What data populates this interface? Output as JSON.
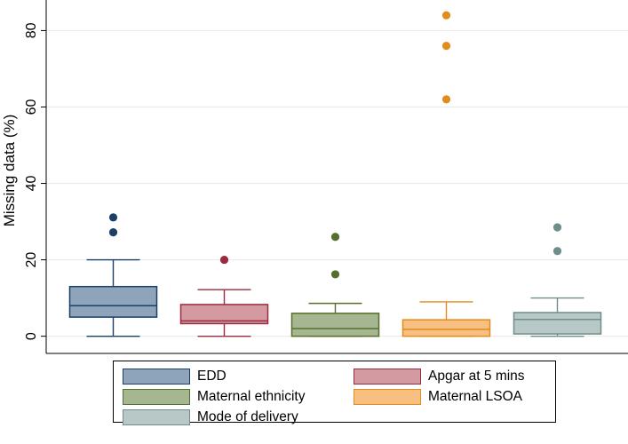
{
  "chart_data": {
    "type": "box",
    "ylabel": "Missing data (%)",
    "yticks": [
      0,
      20,
      40,
      60,
      80
    ],
    "ylim": [
      -4.5,
      88
    ],
    "grid": true,
    "legend_position": "bottom",
    "series": [
      {
        "name": "EDD",
        "fill": "#8ea4bb",
        "stroke": "#1b3f66",
        "min": 0,
        "q1": 5,
        "median": 8,
        "q3": 13,
        "max": 20,
        "outliers": [
          27.2,
          31.1
        ]
      },
      {
        "name": "Apgar at 5 mins",
        "fill": "#d39ba1",
        "stroke": "#9b2b3c",
        "min": 0,
        "q1": 3.3,
        "median": 4,
        "q3": 8.3,
        "max": 12.2,
        "outliers": [
          20
        ]
      },
      {
        "name": "Maternal ethnicity",
        "fill": "#a6b690",
        "stroke": "#55702c",
        "min": 0,
        "q1": 0,
        "median": 2,
        "q3": 6,
        "max": 8.6,
        "outliers": [
          16.2,
          26
        ]
      },
      {
        "name": "Maternal LSOA",
        "fill": "#f8bf83",
        "stroke": "#e18c1b",
        "min": 0,
        "q1": 0,
        "median": 1.8,
        "q3": 4.3,
        "max": 9,
        "outliers": [
          62,
          76,
          84
        ]
      },
      {
        "name": "Mode of delivery",
        "fill": "#b8c8c6",
        "stroke": "#6e8e8c",
        "min": 0,
        "q1": 0.6,
        "median": 4.4,
        "q3": 6.2,
        "max": 10,
        "outliers": [
          22.3,
          28.5
        ]
      }
    ]
  }
}
